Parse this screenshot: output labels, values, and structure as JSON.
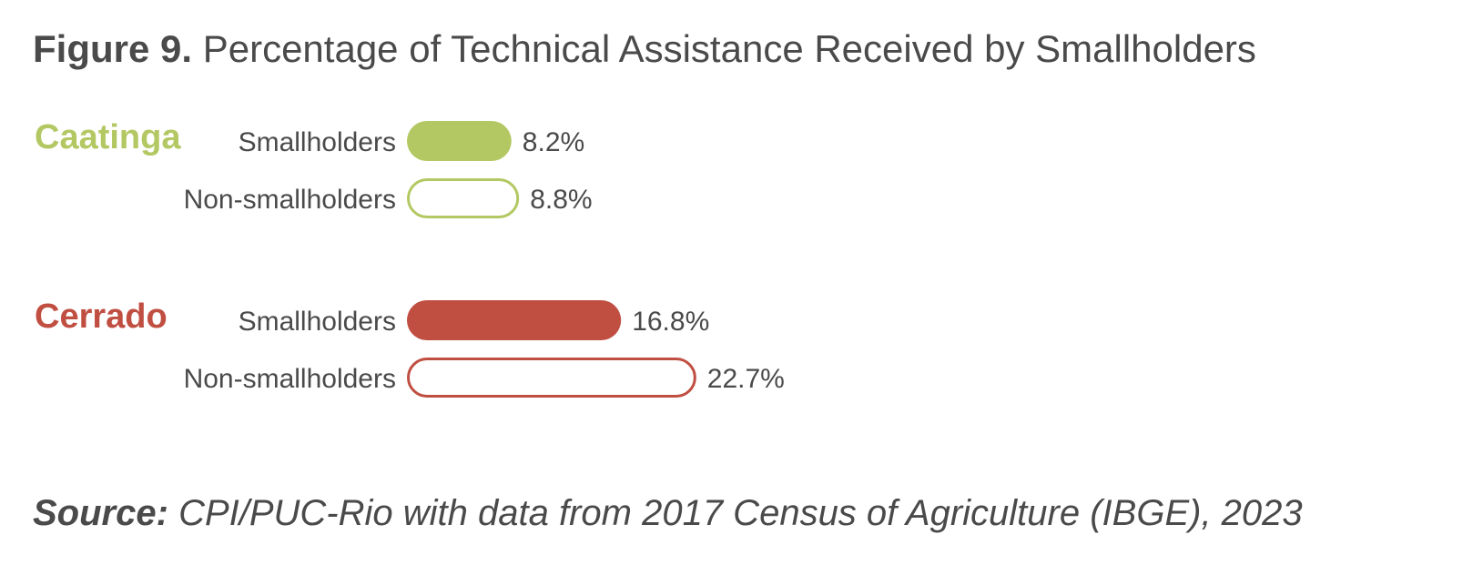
{
  "header": {
    "figure_label": "Figure 9.",
    "title": "Percentage of Technical Assistance Received by Smallholders"
  },
  "footer": {
    "source_label": "Source:",
    "source_text": "CPI/PUC-Rio with data from 2017 Census of Agriculture (IBGE), 2023"
  },
  "chart_data": {
    "type": "bar",
    "orientation": "horizontal",
    "value_suffix": "%",
    "grid": false,
    "groups": [
      {
        "name": "Caatinga",
        "color": "#b3c862",
        "bars": [
          {
            "label": "Smallholders",
            "value": 8.2,
            "style": "filled"
          },
          {
            "label": "Non-smallholders",
            "value": 8.8,
            "style": "outline"
          }
        ]
      },
      {
        "name": "Cerrado",
        "color": "#c04f42",
        "bars": [
          {
            "label": "Smallholders",
            "value": 16.8,
            "style": "filled"
          },
          {
            "label": "Non-smallholders",
            "value": 22.7,
            "style": "outline"
          }
        ]
      }
    ]
  }
}
